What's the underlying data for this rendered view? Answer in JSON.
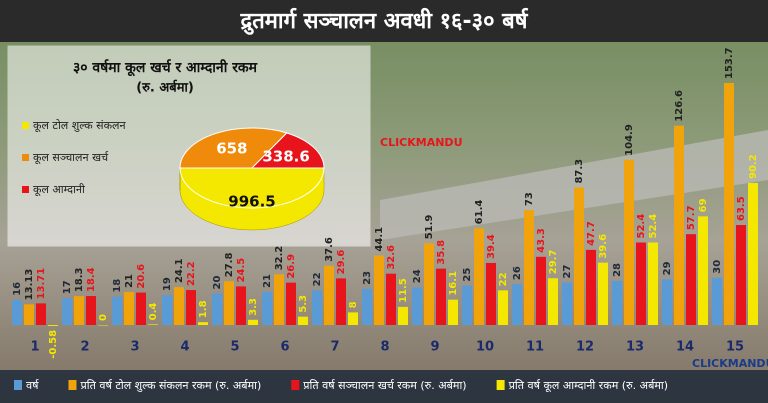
{
  "chart_data": [
    {
      "type": "bar",
      "title": "द्रुतमार्ग सञ्चालन अवधी १६-३० बर्ष",
      "categories": [
        "1",
        "2",
        "3",
        "4",
        "5",
        "6",
        "7",
        "8",
        "9",
        "10",
        "11",
        "12",
        "13",
        "14",
        "15"
      ],
      "series": [
        {
          "name": "वर्ष",
          "color": "#5b9bd5",
          "values": [
            16,
            17,
            18,
            19,
            20,
            21,
            22,
            23,
            24,
            25,
            26,
            27,
            28,
            29,
            30
          ]
        },
        {
          "name": "प्रति वर्ष टोल शुल्क संकलन रकम (रु. अर्बमा)",
          "color": "#f0a30a",
          "values": [
            13.13,
            18.3,
            21,
            24.1,
            27.8,
            32.2,
            37.6,
            44.1,
            51.9,
            61.4,
            73,
            87.3,
            104.9,
            126.6,
            153.7
          ]
        },
        {
          "name": "प्रति वर्ष सञ्चालन खर्च रकम (रु. अर्बमा)",
          "color": "#e8141c",
          "values": [
            13.71,
            18.4,
            20.6,
            22.2,
            24.5,
            26.9,
            29.6,
            32.6,
            35.8,
            39.4,
            43.3,
            47.7,
            52.4,
            57.7,
            63.5
          ]
        },
        {
          "name": "प्रति वर्ष कूल आम्दानी  रकम (रु. अर्बमा)",
          "color": "#f5e800",
          "values": [
            -0.58,
            0,
            0.4,
            1.8,
            3.3,
            5.3,
            8,
            11.5,
            16.1,
            22,
            29.7,
            39.6,
            52.4,
            69,
            90.2
          ]
        }
      ],
      "watermark": "CLICKMANDU"
    },
    {
      "type": "pie",
      "title": "३० वर्षमा कूल  खर्च र आम्दानी रकम",
      "subtitle": "(रु. अर्बमा)",
      "categories": [
        "कूल टोल शुल्क संकलन",
        "कूल सञ्चालन खर्च",
        "कूल आम्दानी"
      ],
      "values": [
        996.5,
        658,
        338.6
      ],
      "colors": [
        "#f5e800",
        "#f08a0a",
        "#e8141c"
      ]
    }
  ]
}
